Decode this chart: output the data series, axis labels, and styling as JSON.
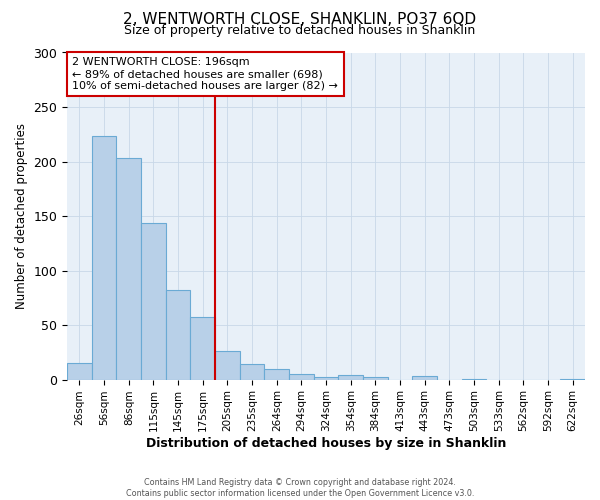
{
  "title": "2, WENTWORTH CLOSE, SHANKLIN, PO37 6QD",
  "subtitle": "Size of property relative to detached houses in Shanklin",
  "xlabel": "Distribution of detached houses by size in Shanklin",
  "ylabel": "Number of detached properties",
  "bar_labels": [
    "26sqm",
    "56sqm",
    "86sqm",
    "115sqm",
    "145sqm",
    "175sqm",
    "205sqm",
    "235sqm",
    "264sqm",
    "294sqm",
    "324sqm",
    "354sqm",
    "384sqm",
    "413sqm",
    "443sqm",
    "473sqm",
    "503sqm",
    "533sqm",
    "562sqm",
    "592sqm",
    "622sqm"
  ],
  "bar_values": [
    15,
    223,
    203,
    144,
    82,
    57,
    26,
    14,
    10,
    5,
    2,
    4,
    2,
    0,
    3,
    0,
    1,
    0,
    0,
    0,
    1
  ],
  "bar_color": "#b8d0e8",
  "bar_edgecolor": "#6aaad4",
  "background_color": "#e8f0f8",
  "vline_color": "#cc0000",
  "annotation_title": "2 WENTWORTH CLOSE: 196sqm",
  "annotation_line1": "← 89% of detached houses are smaller (698)",
  "annotation_line2": "10% of semi-detached houses are larger (82) →",
  "annotation_box_edgecolor": "#cc0000",
  "ylim": [
    0,
    300
  ],
  "footer1": "Contains HM Land Registry data © Crown copyright and database right 2024.",
  "footer2": "Contains public sector information licensed under the Open Government Licence v3.0.",
  "grid_color": "#c8d8e8"
}
